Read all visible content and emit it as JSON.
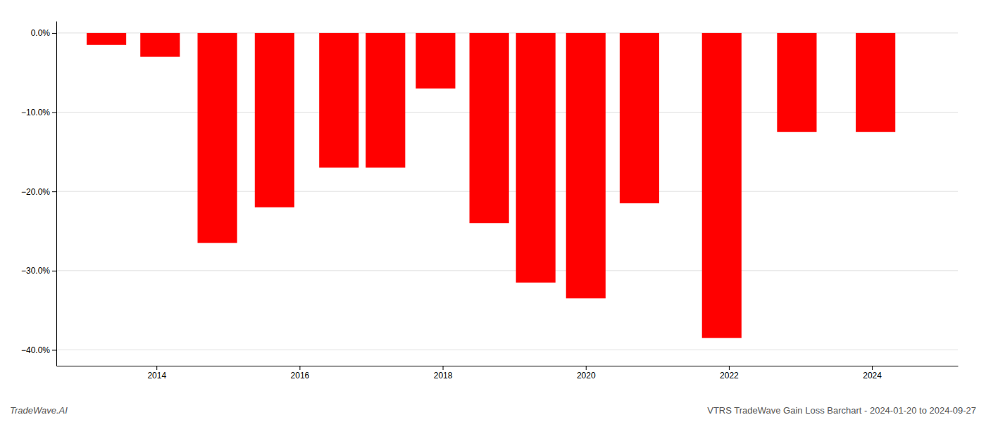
{
  "chart_data": {
    "type": "bar",
    "x": [
      2013.3,
      2014.05,
      2014.85,
      2015.65,
      2016.55,
      2017.2,
      2017.9,
      2018.65,
      2019.3,
      2020.0,
      2020.75,
      2021.9,
      2022.95,
      2024.05
    ],
    "values": [
      -1.5,
      -3.0,
      -26.5,
      -22.0,
      -17.0,
      -17.0,
      -7.0,
      -24.0,
      -31.5,
      -33.5,
      -21.5,
      -38.5,
      -12.5,
      -12.5
    ],
    "color": "#ff0000",
    "xlim": [
      2012.6,
      2025.2
    ],
    "xticks": [
      2014,
      2016,
      2018,
      2020,
      2022,
      2024
    ],
    "ylim": [
      -42,
      1.5
    ],
    "yticks": [
      {
        "value": 0,
        "label": "0.0%"
      },
      {
        "value": -10,
        "label": "−10.0%"
      },
      {
        "value": -20,
        "label": "−20.0%"
      },
      {
        "value": -30,
        "label": "−30.0%"
      },
      {
        "value": -40,
        "label": "−40.0%"
      }
    ],
    "grid": true,
    "annotations": [
      "TradeWave.AI",
      "VTRS TradeWave Gain Loss Barchart - 2024-01-20 to 2024-09-27"
    ]
  }
}
